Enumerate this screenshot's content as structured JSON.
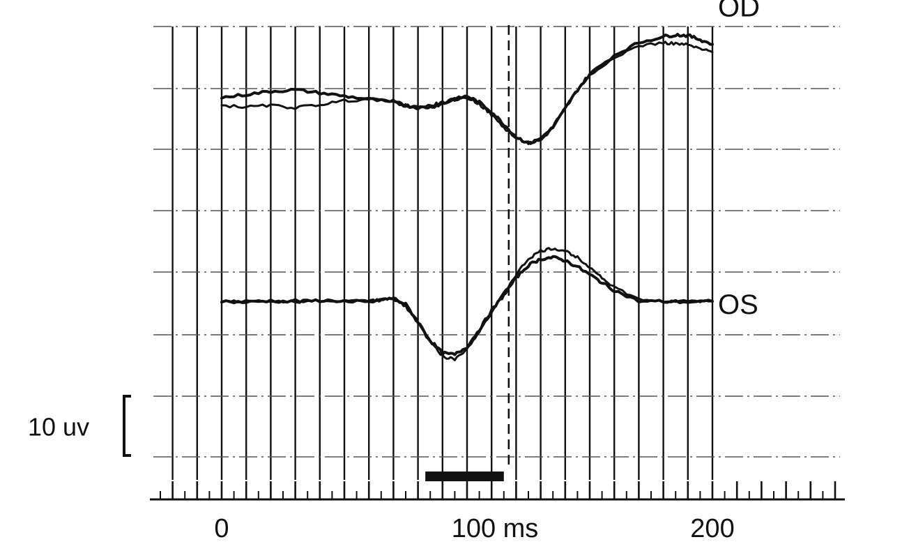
{
  "chart_data": {
    "type": "line",
    "xlabel": "ms",
    "x_range": [
      -20,
      200
    ],
    "x_ticks": [
      {
        "value": 0,
        "label": "0"
      },
      {
        "value": 100,
        "label": "100 ms"
      },
      {
        "value": 200,
        "label": "200"
      }
    ],
    "x_minor_step": 5,
    "x_major_step": 10,
    "grid": true,
    "scale_bar": {
      "label": "10 uv",
      "value_uv": 10
    },
    "stimulus_bar": {
      "start_ms": 83,
      "end_ms": 115
    },
    "dashed_marker_ms": 117,
    "series": [
      {
        "name": "OD",
        "traces": [
          {
            "x": [
              0,
              10,
              20,
              30,
              40,
              50,
              60,
              70,
              75,
              80,
              85,
              90,
              95,
              100,
              105,
              110,
              115,
              120,
              125,
              130,
              135,
              140,
              145,
              150,
              160,
              170,
              180,
              185,
              190,
              195,
              200
            ],
            "y": [
              0,
              1,
              2,
              2.5,
              1.5,
              0.5,
              -0.5,
              -1.5,
              -2.5,
              -3.2,
              -3.0,
              -2.0,
              -0.5,
              0.5,
              -1.5,
              -4.5,
              -8.5,
              -12.5,
              -14.5,
              -13.5,
              -9.5,
              -3.5,
              2.5,
              7.5,
              13.5,
              17.5,
              19.5,
              20.0,
              19.8,
              18.5,
              17.0
            ]
          },
          {
            "x": [
              0,
              10,
              20,
              30,
              40,
              50,
              60,
              70,
              75,
              80,
              85,
              90,
              95,
              100,
              105,
              110,
              115,
              120,
              125,
              130,
              135,
              140,
              145,
              150,
              160,
              170,
              180,
              185,
              190,
              195,
              200
            ],
            "y": [
              -2.5,
              -3.0,
              -2.5,
              -3.2,
              -2.2,
              -1.0,
              -0.5,
              -1.0,
              -2.5,
              -3.0,
              -2.5,
              -1.5,
              -0.5,
              0.0,
              -2.0,
              -5.5,
              -9.5,
              -13.0,
              -14.5,
              -13.2,
              -9.0,
              -3.0,
              2.5,
              7.0,
              13.0,
              16.5,
              17.5,
              17.2,
              16.8,
              15.5,
              14.5
            ]
          }
        ]
      },
      {
        "name": "OS",
        "traces": [
          {
            "x": [
              0,
              10,
              20,
              30,
              40,
              50,
              60,
              65,
              70,
              75,
              80,
              85,
              90,
              95,
              100,
              105,
              110,
              115,
              120,
              125,
              130,
              135,
              140,
              145,
              150,
              155,
              160,
              170,
              180,
              190,
              200
            ],
            "y": [
              0,
              -0.3,
              0.2,
              -0.2,
              0.3,
              0.1,
              -0.3,
              0.4,
              1.0,
              -1.0,
              -6.5,
              -12.5,
              -16.5,
              -17.0,
              -14.5,
              -9.0,
              -3.0,
              2.0,
              7.5,
              11.5,
              13.5,
              14.0,
              13.0,
              11.0,
              8.5,
              6.0,
              3.5,
              0.0,
              0.0,
              -0.2,
              0.0
            ]
          },
          {
            "x": [
              0,
              10,
              20,
              30,
              40,
              50,
              60,
              65,
              70,
              75,
              80,
              85,
              90,
              95,
              100,
              105,
              110,
              115,
              120,
              125,
              130,
              135,
              140,
              145,
              150,
              155,
              160,
              170,
              180,
              190,
              200
            ],
            "y": [
              0,
              0.1,
              -0.2,
              0.3,
              -0.1,
              -0.3,
              0.2,
              0.6,
              0.8,
              -1.5,
              -7.0,
              -13.0,
              -17.5,
              -18.5,
              -15.0,
              -9.5,
              -3.5,
              2.5,
              8.5,
              13.5,
              16.0,
              16.8,
              16.0,
              14.0,
              11.0,
              7.5,
              4.5,
              0.5,
              0.0,
              0.0,
              0.0
            ]
          }
        ]
      }
    ]
  }
}
